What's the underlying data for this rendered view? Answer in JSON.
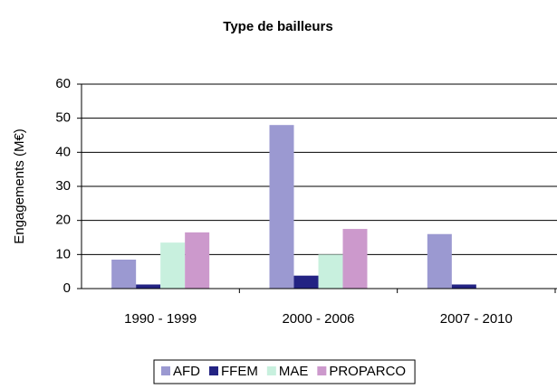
{
  "chart_data": {
    "type": "bar",
    "title": "Type de bailleurs",
    "y_label": "Engagements (M€)",
    "categories": [
      "1990 - 1999",
      "2000 - 2006",
      "2007 - 2010"
    ],
    "series": [
      {
        "name": "AFD",
        "color": "#9b99d1",
        "values": [
          8.5,
          48,
          16
        ]
      },
      {
        "name": "FFEM",
        "color": "#232383",
        "values": [
          1.2,
          3.8,
          1.2
        ]
      },
      {
        "name": "MAE",
        "color": "#c8f0de",
        "values": [
          13.5,
          10,
          0
        ]
      },
      {
        "name": "PROPARCO",
        "color": "#cc99cc",
        "values": [
          16.5,
          17.5,
          0
        ]
      }
    ],
    "ylim": [
      0,
      60
    ],
    "yticks": [
      0,
      10,
      20,
      30,
      40,
      50,
      60
    ],
    "grid": true,
    "legend": "bottom"
  }
}
